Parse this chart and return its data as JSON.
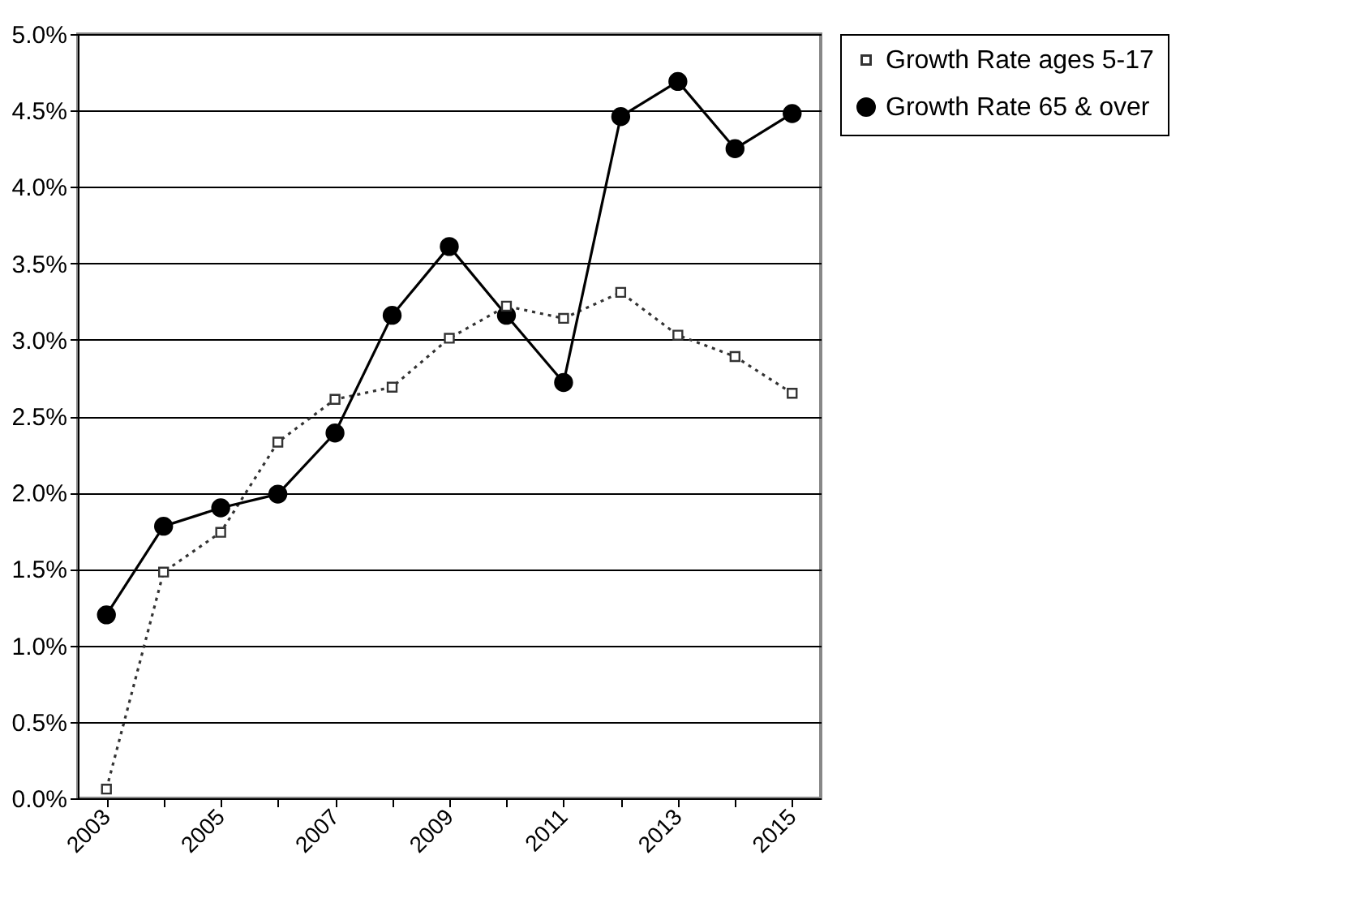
{
  "chart_data": {
    "type": "line",
    "categories": [
      "2003",
      null,
      "2005",
      null,
      "2007",
      null,
      "2009",
      null,
      "2011",
      null,
      "2013",
      null,
      "2015"
    ],
    "series": [
      {
        "name": "Growth Rate ages 5-17",
        "color": "#333333",
        "marker": "square",
        "line_style": "dotted",
        "values": [
          0.06,
          1.48,
          1.74,
          2.33,
          2.61,
          2.69,
          3.01,
          3.22,
          3.14,
          3.31,
          3.03,
          2.89,
          2.65
        ]
      },
      {
        "name": "Growth Rate 65 & over",
        "color": "#000000",
        "marker": "circle",
        "line_style": "solid",
        "values": [
          1.2,
          1.78,
          1.9,
          1.99,
          2.39,
          3.16,
          3.61,
          3.16,
          2.72,
          4.46,
          4.69,
          4.25,
          4.48
        ]
      }
    ],
    "ylim": [
      0,
      5
    ],
    "yticks": [
      {
        "value": 0,
        "label": "0.0%"
      },
      {
        "value": 0.5,
        "label": "0.5%"
      },
      {
        "value": 1,
        "label": "1.0%"
      },
      {
        "value": 1.5,
        "label": "1.5%"
      },
      {
        "value": 2,
        "label": "2.0%"
      },
      {
        "value": 2.5,
        "label": "2.5%"
      },
      {
        "value": 3,
        "label": "3.0%"
      },
      {
        "value": 3.5,
        "label": "3.5%"
      },
      {
        "value": 4,
        "label": "4.0%"
      },
      {
        "value": 4.5,
        "label": "4.5%"
      },
      {
        "value": 5,
        "label": "5.0%"
      }
    ],
    "grid": "y",
    "legend": "right"
  }
}
